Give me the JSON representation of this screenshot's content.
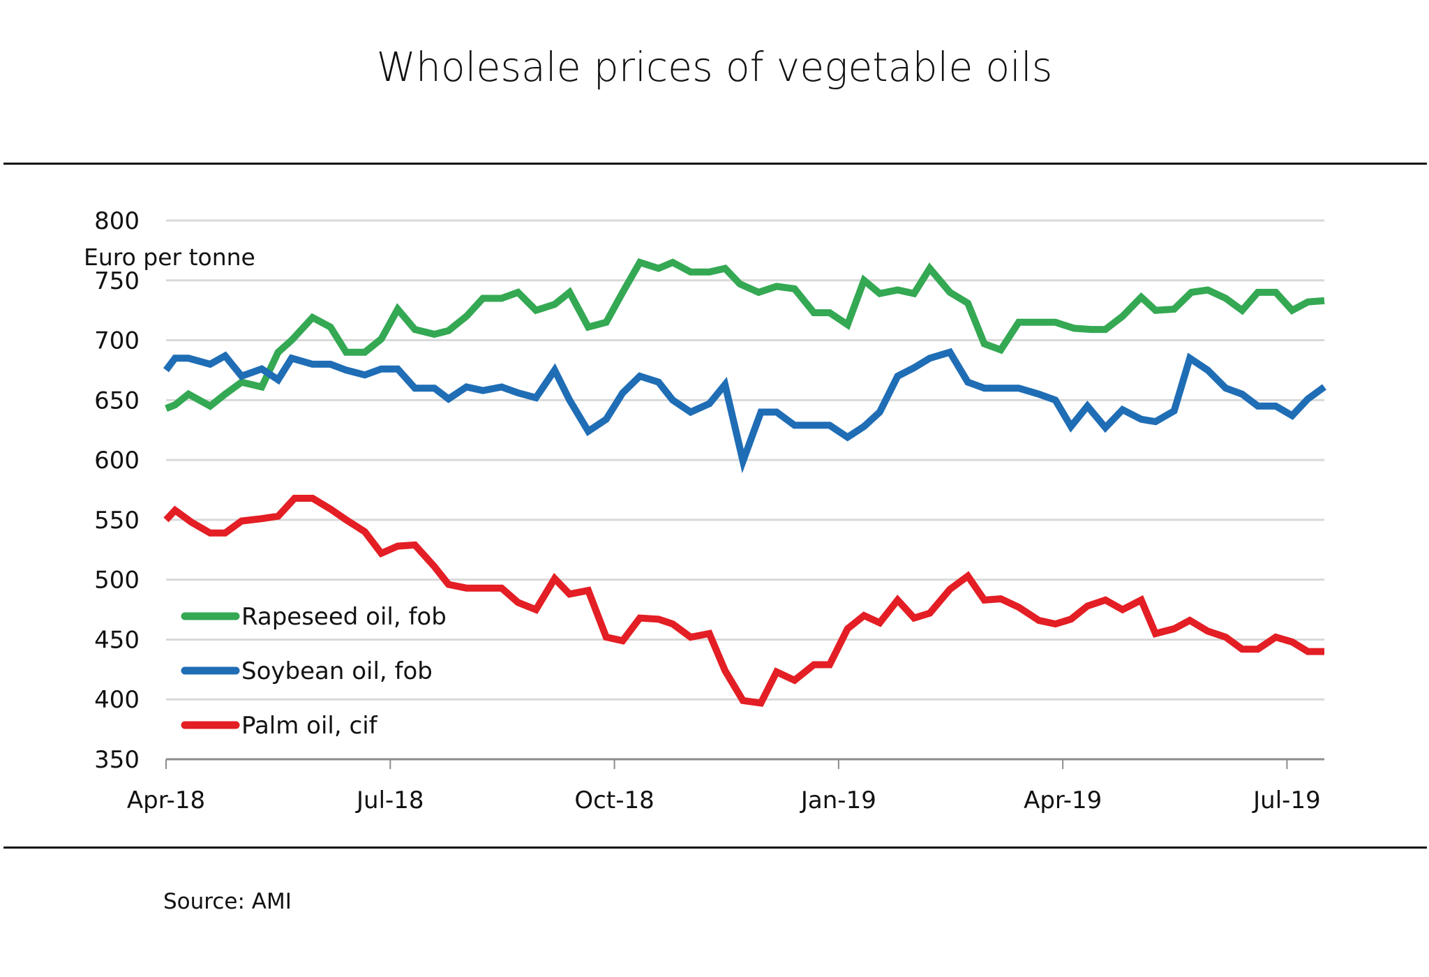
{
  "title": "Wholesale prices of vegetable oils",
  "source": "Source: AMI",
  "chart_data": {
    "type": "line",
    "title": "Wholesale prices of vegetable oils",
    "xlabel": "",
    "ylabel": "Euro per tonne",
    "ylim": [
      350,
      800
    ],
    "yticks": [
      350,
      400,
      450,
      500,
      550,
      600,
      650,
      700,
      750,
      800
    ],
    "x_unit": "months since Apr-18",
    "xlim": [
      0,
      15.5
    ],
    "xticks": [
      {
        "x": 0,
        "label": "Apr-18"
      },
      {
        "x": 3,
        "label": "Jul-18"
      },
      {
        "x": 6,
        "label": "Oct-18"
      },
      {
        "x": 9,
        "label": "Jan-19"
      },
      {
        "x": 12,
        "label": "Apr-19"
      },
      {
        "x": 15,
        "label": "Jul-19"
      }
    ],
    "grid": true,
    "legend_position": "bottom-left",
    "series": [
      {
        "name": "Rapeseed oil, fob",
        "color": "#34a853",
        "points": [
          [
            0.0,
            643
          ],
          [
            0.12,
            646
          ],
          [
            0.3,
            655
          ],
          [
            0.59,
            645
          ],
          [
            0.79,
            655
          ],
          [
            1.01,
            665
          ],
          [
            1.28,
            661
          ],
          [
            1.5,
            690
          ],
          [
            1.68,
            700
          ],
          [
            1.96,
            719
          ],
          [
            2.2,
            711
          ],
          [
            2.41,
            690
          ],
          [
            2.66,
            690
          ],
          [
            2.88,
            701
          ],
          [
            3.1,
            726
          ],
          [
            3.33,
            709
          ],
          [
            3.59,
            705
          ],
          [
            3.78,
            708
          ],
          [
            4.02,
            720
          ],
          [
            4.24,
            735
          ],
          [
            4.49,
            735
          ],
          [
            4.71,
            740
          ],
          [
            4.95,
            725
          ],
          [
            5.2,
            730
          ],
          [
            5.4,
            740
          ],
          [
            5.65,
            711
          ],
          [
            5.89,
            715
          ],
          [
            6.11,
            740
          ],
          [
            6.34,
            765
          ],
          [
            6.59,
            760
          ],
          [
            6.78,
            765
          ],
          [
            7.02,
            757
          ],
          [
            7.27,
            757
          ],
          [
            7.48,
            760
          ],
          [
            7.68,
            747
          ],
          [
            7.93,
            740
          ],
          [
            8.17,
            745
          ],
          [
            8.41,
            743
          ],
          [
            8.67,
            723
          ],
          [
            8.88,
            723
          ],
          [
            9.12,
            713
          ],
          [
            9.34,
            750
          ],
          [
            9.55,
            739
          ],
          [
            9.79,
            742
          ],
          [
            10.01,
            739
          ],
          [
            10.22,
            760
          ],
          [
            10.49,
            740
          ],
          [
            10.73,
            731
          ],
          [
            10.95,
            697
          ],
          [
            11.17,
            692
          ],
          [
            11.41,
            715
          ],
          [
            11.68,
            715
          ],
          [
            11.9,
            715
          ],
          [
            12.15,
            710
          ],
          [
            12.38,
            709
          ],
          [
            12.57,
            709
          ],
          [
            12.8,
            720
          ],
          [
            13.05,
            736
          ],
          [
            13.24,
            725
          ],
          [
            13.49,
            726
          ],
          [
            13.72,
            740
          ],
          [
            13.94,
            742
          ],
          [
            14.18,
            735
          ],
          [
            14.4,
            725
          ],
          [
            14.61,
            740
          ],
          [
            14.85,
            740
          ],
          [
            15.07,
            725
          ],
          [
            15.28,
            732
          ],
          [
            15.5,
            733
          ]
        ]
      },
      {
        "name": "Soybean oil, fob",
        "color": "#1f6db5",
        "points": [
          [
            0.0,
            675
          ],
          [
            0.12,
            685
          ],
          [
            0.3,
            685
          ],
          [
            0.59,
            680
          ],
          [
            0.79,
            687
          ],
          [
            1.01,
            670
          ],
          [
            1.28,
            676
          ],
          [
            1.5,
            667
          ],
          [
            1.68,
            685
          ],
          [
            1.96,
            680
          ],
          [
            2.2,
            680
          ],
          [
            2.41,
            675
          ],
          [
            2.66,
            671
          ],
          [
            2.88,
            676
          ],
          [
            3.1,
            676
          ],
          [
            3.33,
            660
          ],
          [
            3.59,
            660
          ],
          [
            3.78,
            651
          ],
          [
            4.02,
            661
          ],
          [
            4.24,
            658
          ],
          [
            4.49,
            661
          ],
          [
            4.71,
            656
          ],
          [
            4.95,
            652
          ],
          [
            5.2,
            675
          ],
          [
            5.4,
            650
          ],
          [
            5.65,
            624
          ],
          [
            5.89,
            634
          ],
          [
            6.11,
            656
          ],
          [
            6.34,
            670
          ],
          [
            6.59,
            665
          ],
          [
            6.78,
            650
          ],
          [
            7.02,
            640
          ],
          [
            7.27,
            647
          ],
          [
            7.48,
            663
          ],
          [
            7.72,
            599
          ],
          [
            7.96,
            640
          ],
          [
            8.17,
            640
          ],
          [
            8.41,
            629
          ],
          [
            8.67,
            629
          ],
          [
            8.88,
            629
          ],
          [
            9.12,
            619
          ],
          [
            9.34,
            628
          ],
          [
            9.55,
            640
          ],
          [
            9.79,
            670
          ],
          [
            10.01,
            677
          ],
          [
            10.22,
            685
          ],
          [
            10.49,
            690
          ],
          [
            10.73,
            665
          ],
          [
            10.95,
            660
          ],
          [
            11.17,
            660
          ],
          [
            11.41,
            660
          ],
          [
            11.68,
            655
          ],
          [
            11.9,
            650
          ],
          [
            12.11,
            628
          ],
          [
            12.33,
            645
          ],
          [
            12.57,
            627
          ],
          [
            12.8,
            642
          ],
          [
            13.05,
            634
          ],
          [
            13.24,
            632
          ],
          [
            13.49,
            641
          ],
          [
            13.7,
            685
          ],
          [
            13.94,
            675
          ],
          [
            14.18,
            660
          ],
          [
            14.4,
            655
          ],
          [
            14.61,
            645
          ],
          [
            14.85,
            645
          ],
          [
            15.07,
            637
          ],
          [
            15.28,
            651
          ],
          [
            15.5,
            661
          ]
        ]
      },
      {
        "name": "Palm oil, cif",
        "color": "#e31e24",
        "points": [
          [
            0.0,
            550
          ],
          [
            0.12,
            558
          ],
          [
            0.34,
            548
          ],
          [
            0.59,
            539
          ],
          [
            0.79,
            539
          ],
          [
            1.01,
            549
          ],
          [
            1.28,
            551
          ],
          [
            1.5,
            553
          ],
          [
            1.72,
            568
          ],
          [
            1.96,
            568
          ],
          [
            2.2,
            559
          ],
          [
            2.41,
            550
          ],
          [
            2.66,
            540
          ],
          [
            2.88,
            522
          ],
          [
            3.1,
            528
          ],
          [
            3.33,
            529
          ],
          [
            3.59,
            511
          ],
          [
            3.78,
            496
          ],
          [
            4.02,
            493
          ],
          [
            4.24,
            493
          ],
          [
            4.49,
            493
          ],
          [
            4.71,
            481
          ],
          [
            4.95,
            475
          ],
          [
            5.2,
            501
          ],
          [
            5.4,
            488
          ],
          [
            5.65,
            491
          ],
          [
            5.89,
            452
          ],
          [
            6.11,
            449
          ],
          [
            6.34,
            468
          ],
          [
            6.59,
            467
          ],
          [
            6.78,
            463
          ],
          [
            7.02,
            452
          ],
          [
            7.27,
            455
          ],
          [
            7.48,
            424
          ],
          [
            7.72,
            399
          ],
          [
            7.96,
            397
          ],
          [
            8.17,
            423
          ],
          [
            8.41,
            416
          ],
          [
            8.67,
            429
          ],
          [
            8.88,
            429
          ],
          [
            9.12,
            459
          ],
          [
            9.34,
            470
          ],
          [
            9.55,
            464
          ],
          [
            9.79,
            483
          ],
          [
            10.01,
            468
          ],
          [
            10.22,
            472
          ],
          [
            10.49,
            492
          ],
          [
            10.73,
            503
          ],
          [
            10.95,
            483
          ],
          [
            11.17,
            484
          ],
          [
            11.41,
            477
          ],
          [
            11.68,
            466
          ],
          [
            11.9,
            463
          ],
          [
            12.11,
            467
          ],
          [
            12.33,
            478
          ],
          [
            12.57,
            483
          ],
          [
            12.8,
            475
          ],
          [
            13.05,
            483
          ],
          [
            13.24,
            455
          ],
          [
            13.49,
            459
          ],
          [
            13.7,
            466
          ],
          [
            13.94,
            457
          ],
          [
            14.18,
            452
          ],
          [
            14.4,
            442
          ],
          [
            14.61,
            442
          ],
          [
            14.85,
            452
          ],
          [
            15.07,
            448
          ],
          [
            15.28,
            440
          ],
          [
            15.5,
            440
          ]
        ]
      }
    ]
  }
}
